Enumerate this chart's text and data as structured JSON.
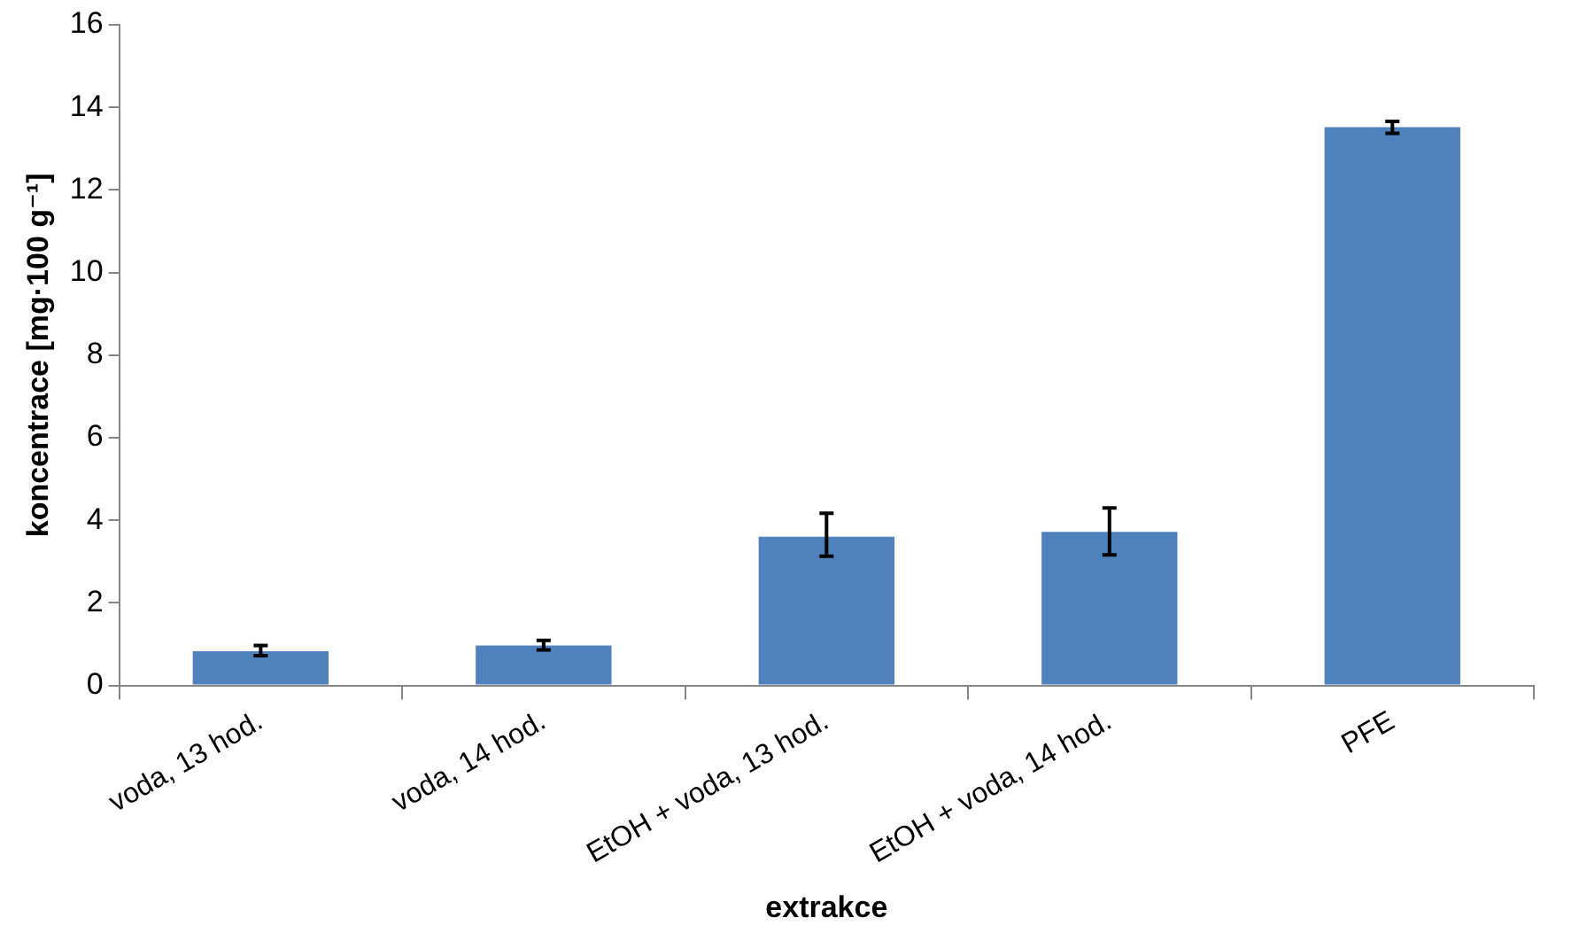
{
  "chart_data": {
    "type": "bar",
    "xlabel": "extrakce",
    "ylabel": "koncentrace [mg·100 g⁻¹]",
    "categories": [
      "voda, 13 hod.",
      "voda, 14 hod.",
      "EtOH + voda, 13 hod.",
      "EtOH + voda, 14 hod.",
      "PFE"
    ],
    "values": [
      0.83,
      0.97,
      3.6,
      3.72,
      13.52
    ],
    "errors": [
      [
        0.72,
        0.97
      ],
      [
        0.86,
        1.09
      ],
      [
        3.13,
        4.17
      ],
      [
        3.16,
        4.3
      ],
      [
        13.37,
        13.66
      ]
    ],
    "color": "#4f81bd",
    "ylim": [
      0,
      16
    ],
    "yticks": [
      0,
      2,
      4,
      6,
      8,
      10,
      12,
      14,
      16
    ],
    "grid": false,
    "legend": false
  }
}
